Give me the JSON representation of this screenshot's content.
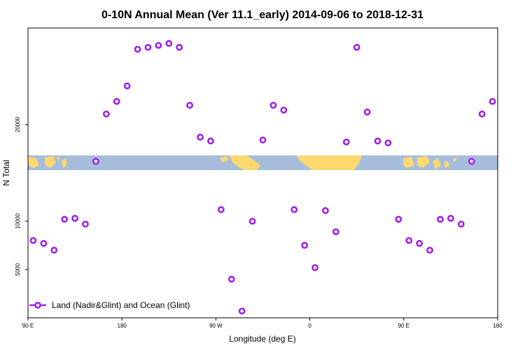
{
  "chart_data": {
    "type": "scatter",
    "title": "0-10N Annual Mean (Ver 11.1_early)   2014-09-06 to 2018-12-31",
    "xlabel": "Longitude (deg E)",
    "ylabel": "N Total",
    "xlim": [
      90,
      540
    ],
    "ylim": [
      0,
      30000
    ],
    "xticks": [
      {
        "value": 90,
        "label": "90 E"
      },
      {
        "value": 180,
        "label": "180"
      },
      {
        "value": 270,
        "label": "90 W"
      },
      {
        "value": 360,
        "label": "0"
      },
      {
        "value": 450,
        "label": "90 E"
      },
      {
        "value": 540,
        "label": "180"
      }
    ],
    "yticks": [
      {
        "value": 5000,
        "label": "5000"
      },
      {
        "value": 10000,
        "label": "10000"
      },
      {
        "value": 20000,
        "label": "20000"
      }
    ],
    "legend": {
      "label": "Land (Nadir&Glint) and Ocean (Glint)",
      "position": "bottom-left"
    },
    "marker_color": "#a020f0",
    "map_strip": {
      "ocean_color": "#a6bddb",
      "land_color": "#ffd870",
      "lat_range": "0-10N"
    },
    "series": [
      {
        "name": "Land (Nadir&Glint) and Ocean (Glint)",
        "x": [
          95,
          105,
          115,
          125,
          135,
          145,
          155,
          165,
          175,
          185,
          195,
          205,
          215,
          225,
          235,
          245,
          255,
          265,
          275,
          285,
          295,
          305,
          315,
          325,
          335,
          345,
          355,
          365,
          375,
          385,
          395,
          405,
          415,
          425,
          435,
          445,
          455,
          465,
          475,
          485,
          495,
          505,
          515,
          525,
          535
        ],
        "y": [
          8000,
          7700,
          7000,
          10200,
          10300,
          9700,
          16200,
          21100,
          22400,
          24000,
          27800,
          28000,
          28200,
          28400,
          28000,
          22000,
          18700,
          18300,
          11200,
          4000,
          700,
          10000,
          18400,
          22000,
          21500,
          11200,
          7500,
          5200,
          11100,
          8900,
          18200,
          28000,
          21300,
          18300,
          18100,
          10200,
          8000,
          7700,
          7000,
          10200,
          10300,
          9700,
          16200,
          21100,
          22400
        ]
      }
    ]
  }
}
